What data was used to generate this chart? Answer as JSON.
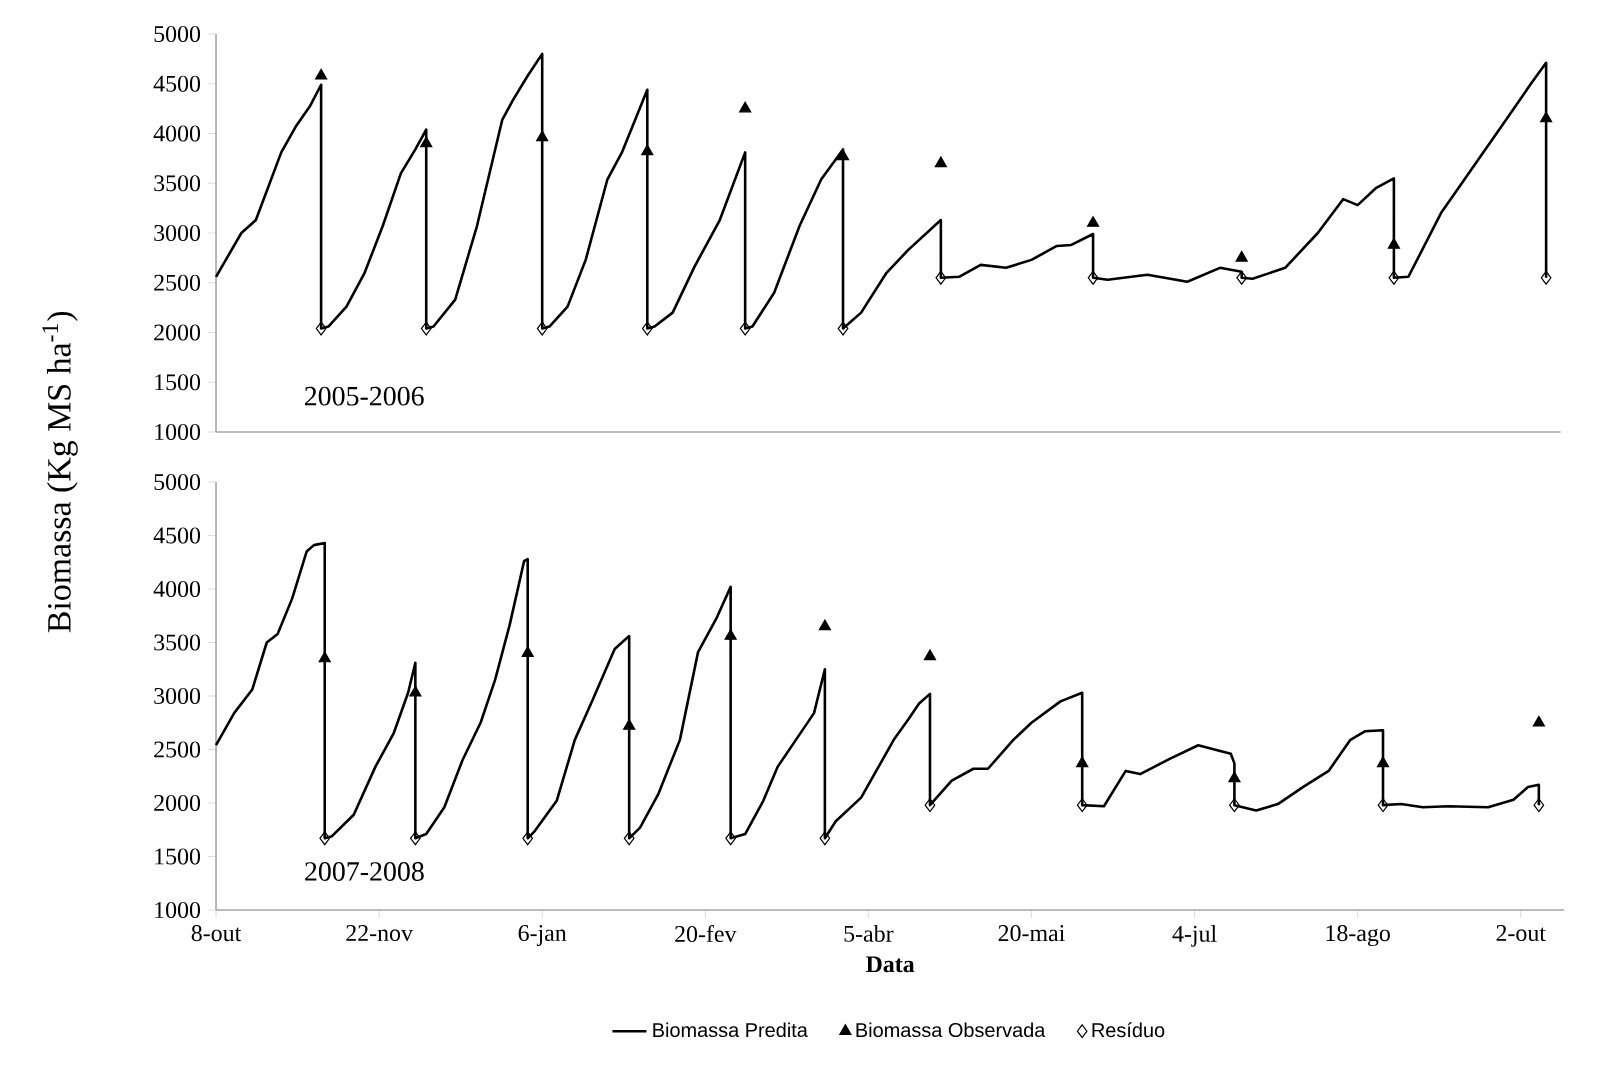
{
  "chart_data": [
    {
      "type": "line",
      "ylabel": "Biomassa (Kg MS ha$^{-1}$)",
      "annotations": [
        "2005-2006"
      ],
      "xlim": [
        "2005-10-08",
        "2006-10-14"
      ],
      "ylim": [
        1000,
        5000
      ],
      "yticks": [
        1000,
        1500,
        2000,
        2500,
        3000,
        3500,
        4000,
        4500,
        5000
      ],
      "tick_labels": "y",
      "xticks": [
        {
          "value": "2005-10-08",
          "label": "8-out"
        },
        {
          "value": "2005-11-22",
          "label": "22-nov"
        },
        {
          "value": "2006-01-06",
          "label": "6-jan"
        },
        {
          "value": "2006-02-20",
          "label": "20-fev"
        },
        {
          "value": "2006-04-05",
          "label": "5-abr"
        },
        {
          "value": "2006-05-20",
          "label": "20-mai"
        },
        {
          "value": "2006-07-04",
          "label": "4-jul"
        },
        {
          "value": "2006-08-18",
          "label": "18-ago"
        },
        {
          "value": "2006-10-02",
          "label": "2-out"
        }
      ],
      "series": [
        {
          "color": "#000000",
          "marker": "none",
          "x": [
            "2005-10-08",
            "2005-10-15",
            "2005-10-19",
            "2005-10-26",
            "2005-10-30",
            "2005-11-03",
            "2005-11-06",
            "2005-11-06",
            "2005-11-08",
            "2005-11-13",
            "2005-11-18",
            "2005-11-23",
            "2005-11-28",
            "2005-12-02",
            "2005-12-05",
            "2005-12-05",
            "2005-12-07",
            "2005-12-13",
            "2005-12-19",
            "2005-12-26",
            "2005-12-29",
            "2006-01-02",
            "2006-01-06",
            "2006-01-06",
            "2006-01-08",
            "2006-01-13",
            "2006-01-18",
            "2006-01-24",
            "2006-01-28",
            "2006-02-04",
            "2006-02-04",
            "2006-02-06",
            "2006-02-11",
            "2006-02-17",
            "2006-02-24",
            "2006-03-03",
            "2006-03-03",
            "2006-03-05",
            "2006-03-11",
            "2006-03-18",
            "2006-03-24",
            "2006-03-30",
            "2006-03-30",
            "2006-04-04",
            "2006-04-11",
            "2006-04-17",
            "2006-04-26",
            "2006-04-26",
            "2006-05-01",
            "2006-05-07",
            "2006-05-14",
            "2006-05-21",
            "2006-05-28",
            "2006-06-01",
            "2006-06-07",
            "2006-06-07",
            "2006-06-11",
            "2006-06-22",
            "2006-07-03",
            "2006-07-12",
            "2006-07-18",
            "2006-07-18",
            "2006-07-21",
            "2006-07-30",
            "2006-08-08",
            "2006-08-15",
            "2006-08-19",
            "2006-08-24",
            "2006-08-29",
            "2006-08-29",
            "2006-09-02",
            "2006-09-11",
            "2006-09-20",
            "2006-09-29",
            "2006-10-06",
            "2006-10-10",
            "2006-10-10"
          ],
          "values": [
            2560,
            3000,
            3130,
            3810,
            4070,
            4280,
            4490,
            2040,
            2060,
            2260,
            2600,
            3070,
            3600,
            3840,
            4040,
            2040,
            2060,
            2330,
            3070,
            4140,
            4340,
            4580,
            4800,
            2040,
            2060,
            2260,
            2730,
            3540,
            3810,
            4440,
            2040,
            2060,
            2200,
            2660,
            3130,
            3810,
            2040,
            2060,
            2400,
            3070,
            3540,
            3840,
            2040,
            2200,
            2600,
            2830,
            3130,
            2550,
            2560,
            2680,
            2650,
            2730,
            2870,
            2880,
            2990,
            2550,
            2530,
            2580,
            2510,
            2650,
            2610,
            2550,
            2540,
            2650,
            3000,
            3340,
            3280,
            3450,
            3550,
            2550,
            2560,
            3200,
            3670,
            4140,
            4510,
            4710,
            2550
          ]
        },
        {
          "type": "scatter",
          "color": "#000000",
          "marker": "triangle",
          "x": [
            "2005-11-06",
            "2005-12-05",
            "2006-01-06",
            "2006-02-04",
            "2006-03-03",
            "2006-03-30",
            "2006-04-26",
            "2006-06-07",
            "2006-07-18",
            "2006-08-29",
            "2006-10-10"
          ],
          "values": [
            4580,
            3900,
            3960,
            3820,
            4250,
            3770,
            3700,
            3100,
            2750,
            2880,
            4150
          ]
        },
        {
          "type": "scatter",
          "color": "#000000",
          "marker": "diamond",
          "x": [
            "2005-11-06",
            "2005-12-05",
            "2006-01-06",
            "2006-02-04",
            "2006-03-03",
            "2006-03-30",
            "2006-04-26",
            "2006-06-07",
            "2006-07-18",
            "2006-08-29",
            "2006-10-10"
          ],
          "values": [
            2040,
            2040,
            2040,
            2040,
            2040,
            2040,
            2550,
            2550,
            2550,
            2550,
            2550
          ]
        }
      ]
    },
    {
      "type": "line",
      "xlabel": "**Data**",
      "annotations": [
        "2007-2008"
      ],
      "xlim": [
        "2007-10-08",
        "2008-10-14"
      ],
      "ylim": [
        1000,
        5000
      ],
      "yticks": [
        1000,
        1500,
        2000,
        2500,
        3000,
        3500,
        4000,
        4500,
        5000
      ],
      "xticks": [
        {
          "value": "2007-10-08",
          "label": "8-out"
        },
        {
          "value": "2007-11-22",
          "label": "22-nov"
        },
        {
          "value": "2008-01-06",
          "label": "6-jan"
        },
        {
          "value": "2008-02-20",
          "label": "20-fev"
        },
        {
          "value": "2008-04-05",
          "label": "5-abr"
        },
        {
          "value": "2008-05-20",
          "label": "20-mai"
        },
        {
          "value": "2008-07-04",
          "label": "4-jul"
        },
        {
          "value": "2008-08-18",
          "label": "18-ago"
        },
        {
          "value": "2008-10-02",
          "label": "2-out"
        }
      ],
      "legend": "bottom",
      "series": [
        {
          "name": "Biomassa Predita",
          "color": "#000000",
          "marker": "none",
          "x": [
            "2007-10-08",
            "2007-10-13",
            "2007-10-18",
            "2007-10-22",
            "2007-10-25",
            "2007-10-29",
            "2007-11-02",
            "2007-11-04",
            "2007-11-07",
            "2007-11-07",
            "2007-11-09",
            "2007-11-15",
            "2007-11-21",
            "2007-11-26",
            "2007-11-30",
            "2007-12-02",
            "2007-12-02",
            "2007-12-05",
            "2007-12-10",
            "2007-12-15",
            "2007-12-20",
            "2007-12-24",
            "2007-12-28",
            "2008-01-01",
            "2008-01-02",
            "2008-01-02",
            "2008-01-04",
            "2008-01-10",
            "2008-01-15",
            "2008-01-20",
            "2008-01-26",
            "2008-01-30",
            "2008-01-30",
            "2008-02-02",
            "2008-02-07",
            "2008-02-13",
            "2008-02-18",
            "2008-02-23",
            "2008-02-27",
            "2008-02-27",
            "2008-03-02",
            "2008-03-07",
            "2008-03-11",
            "2008-03-16",
            "2008-03-21",
            "2008-03-24",
            "2008-03-24",
            "2008-03-27",
            "2008-04-03",
            "2008-04-12",
            "2008-04-16",
            "2008-04-19",
            "2008-04-22",
            "2008-04-22",
            "2008-04-28",
            "2008-05-04",
            "2008-05-08",
            "2008-05-15",
            "2008-05-20",
            "2008-05-28",
            "2008-06-03",
            "2008-06-03",
            "2008-06-09",
            "2008-06-15",
            "2008-06-19",
            "2008-06-27",
            "2008-07-05",
            "2008-07-14",
            "2008-07-15",
            "2008-07-15",
            "2008-07-21",
            "2008-07-27",
            "2008-08-03",
            "2008-08-10",
            "2008-08-16",
            "2008-08-20",
            "2008-08-25",
            "2008-08-25",
            "2008-08-30",
            "2008-09-05",
            "2008-09-12",
            "2008-09-23",
            "2008-09-30",
            "2008-10-04",
            "2008-10-07",
            "2008-10-07"
          ],
          "values": [
            2540,
            2840,
            3060,
            3500,
            3580,
            3910,
            4350,
            4410,
            4430,
            1670,
            1690,
            1890,
            2340,
            2650,
            3030,
            3310,
            1670,
            1710,
            1960,
            2400,
            2750,
            3150,
            3660,
            4260,
            4280,
            1670,
            1740,
            2020,
            2590,
            2970,
            3440,
            3560,
            1670,
            1770,
            2080,
            2590,
            3410,
            3720,
            4020,
            1670,
            1710,
            2020,
            2340,
            2590,
            2840,
            3250,
            1670,
            1830,
            2050,
            2590,
            2780,
            2930,
            3020,
            1980,
            2210,
            2320,
            2320,
            2590,
            2750,
            2950,
            3030,
            1980,
            1970,
            2300,
            2270,
            2410,
            2540,
            2460,
            2370,
            1980,
            1930,
            1990,
            2150,
            2300,
            2590,
            2670,
            2680,
            1980,
            1990,
            1960,
            1970,
            1960,
            2030,
            2150,
            2170,
            1980
          ]
        },
        {
          "type": "scatter",
          "name": "Biomassa Observada",
          "color": "#000000",
          "marker": "triangle",
          "x": [
            "2007-11-07",
            "2007-12-02",
            "2008-01-02",
            "2008-01-30",
            "2008-02-27",
            "2008-03-24",
            "2008-04-22",
            "2008-06-03",
            "2008-07-15",
            "2008-08-25",
            "2008-10-07"
          ],
          "values": [
            3350,
            3030,
            3400,
            2720,
            3560,
            3650,
            3370,
            2370,
            2230,
            2370,
            2750
          ]
        },
        {
          "type": "scatter",
          "name": "Resíduo",
          "color": "#000000",
          "marker": "diamond",
          "x": [
            "2007-11-07",
            "2007-12-02",
            "2008-01-02",
            "2008-01-30",
            "2008-02-27",
            "2008-03-24",
            "2008-04-22",
            "2008-06-03",
            "2008-07-15",
            "2008-08-25",
            "2008-10-07"
          ],
          "values": [
            1670,
            1670,
            1670,
            1670,
            1670,
            1670,
            1980,
            1980,
            1980,
            1980,
            1980
          ]
        }
      ]
    }
  ]
}
